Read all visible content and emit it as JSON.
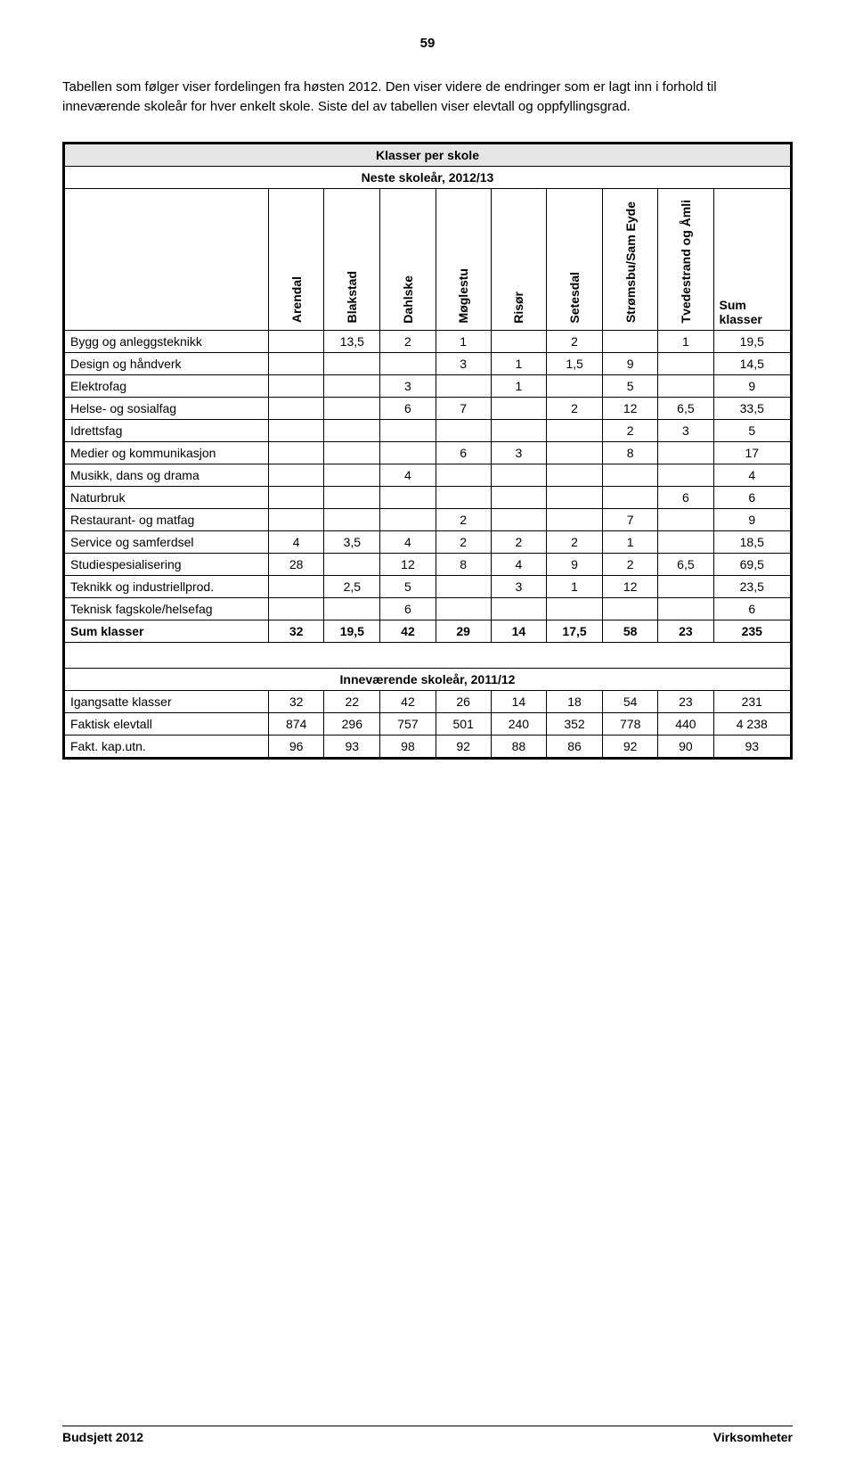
{
  "page_number": "59",
  "intro_text": "Tabellen som følger viser fordelingen fra høsten 2012. Den viser videre de endringer som er lagt inn i forhold til inneværende skoleår for hver enkelt skole. Siste del av tabellen viser elevtall og oppfyllingsgrad.",
  "table": {
    "title": "Klasser per skole",
    "subtitle": "Neste skoleår, 2012/13",
    "columns": [
      "Arendal",
      "Blakstad",
      "Dahlske",
      "Møglestu",
      "Risør",
      "Setesdal",
      "Strømsbu/Sam Eyde",
      "Tvedestrand og Åmli"
    ],
    "sum_label_line1": "Sum",
    "sum_label_line2": "klasser",
    "rows": [
      {
        "label": "Bygg og anleggsteknikk",
        "cells": [
          "",
          "13,5",
          "2",
          "1",
          "",
          "2",
          "",
          "1",
          "19,5"
        ]
      },
      {
        "label": "Design og håndverk",
        "cells": [
          "",
          "",
          "",
          "3",
          "1",
          "1,5",
          "9",
          "",
          "14,5"
        ]
      },
      {
        "label": "Elektrofag",
        "cells": [
          "",
          "",
          "3",
          "",
          "1",
          "",
          "5",
          "",
          "9"
        ]
      },
      {
        "label": "Helse- og sosialfag",
        "cells": [
          "",
          "",
          "6",
          "7",
          "",
          "2",
          "12",
          "6,5",
          "33,5"
        ]
      },
      {
        "label": "Idrettsfag",
        "cells": [
          "",
          "",
          "",
          "",
          "",
          "",
          "2",
          "3",
          "5"
        ]
      },
      {
        "label": "Medier og kommunikasjon",
        "cells": [
          "",
          "",
          "",
          "6",
          "3",
          "",
          "8",
          "",
          "17"
        ]
      },
      {
        "label": "Musikk, dans og drama",
        "cells": [
          "",
          "",
          "4",
          "",
          "",
          "",
          "",
          "",
          "4"
        ]
      },
      {
        "label": "Naturbruk",
        "cells": [
          "",
          "",
          "",
          "",
          "",
          "",
          "",
          "6",
          "6"
        ]
      },
      {
        "label": "Restaurant- og matfag",
        "cells": [
          "",
          "",
          "",
          "2",
          "",
          "",
          "7",
          "",
          "9"
        ]
      },
      {
        "label": "Service og samferdsel",
        "cells": [
          "4",
          "3,5",
          "4",
          "2",
          "2",
          "2",
          "1",
          "",
          "18,5"
        ]
      },
      {
        "label": "Studiespesialisering",
        "cells": [
          "28",
          "",
          "12",
          "8",
          "4",
          "9",
          "2",
          "6,5",
          "69,5"
        ]
      },
      {
        "label": "Teknikk og industriellprod.",
        "cells": [
          "",
          "2,5",
          "5",
          "",
          "3",
          "1",
          "12",
          "",
          "23,5"
        ]
      },
      {
        "label": "Teknisk fagskole/helsefag",
        "cells": [
          "",
          "",
          "6",
          "",
          "",
          "",
          "",
          "",
          "6"
        ]
      }
    ],
    "sum_row": {
      "label": "Sum klasser",
      "cells": [
        "32",
        "19,5",
        "42",
        "29",
        "14",
        "17,5",
        "58",
        "23",
        "235"
      ]
    },
    "section2_title": "Inneværende skoleår, 2011/12",
    "rows2": [
      {
        "label": "Igangsatte klasser",
        "cells": [
          "32",
          "22",
          "42",
          "26",
          "14",
          "18",
          "54",
          "23",
          "231"
        ]
      },
      {
        "label": "Faktisk elevtall",
        "cells": [
          "874",
          "296",
          "757",
          "501",
          "240",
          "352",
          "778",
          "440",
          "4 238"
        ]
      },
      {
        "label": "Fakt. kap.utn.",
        "cells": [
          "96",
          "93",
          "98",
          "92",
          "88",
          "86",
          "92",
          "90",
          "93"
        ]
      }
    ]
  },
  "footer_left": "Budsjett 2012",
  "footer_right": "Virksomheter"
}
